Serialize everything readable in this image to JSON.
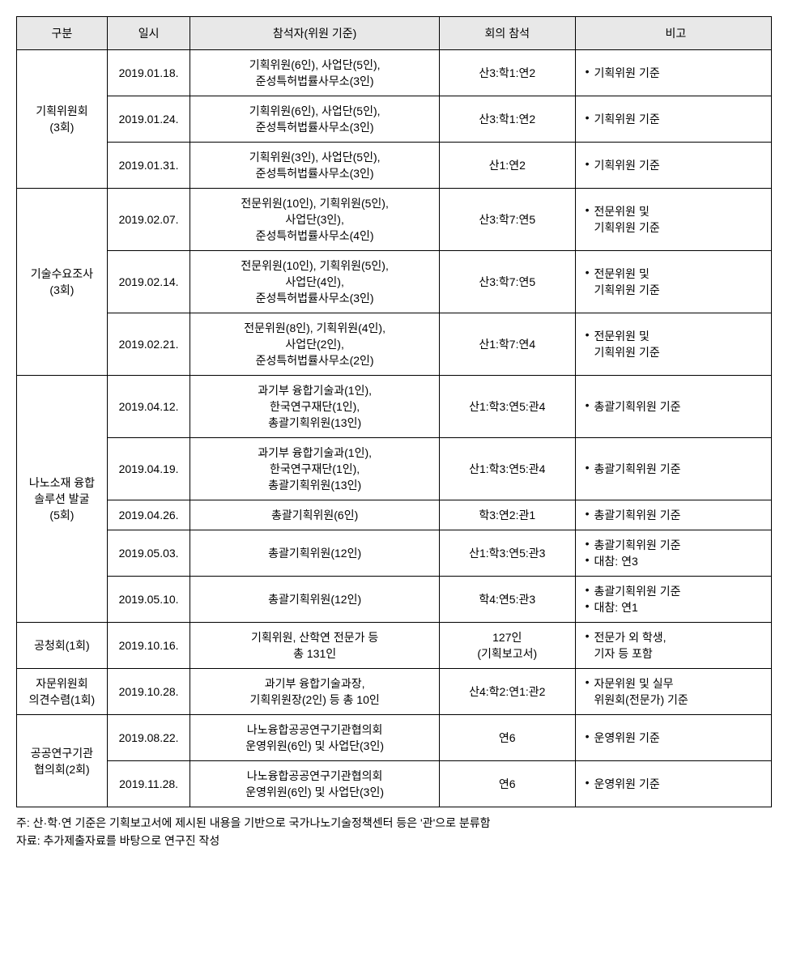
{
  "headers": {
    "category": "구분",
    "date": "일시",
    "attendee": "참석자(위원 기준)",
    "meeting": "회의 참석",
    "note": "비고"
  },
  "groups": [
    {
      "category": "기획위원회\n(3회)",
      "rows": [
        {
          "date": "2019.01.18.",
          "attendee": "기획위원(6인), 사업단(5인),\n준성특허법률사무소(3인)",
          "meeting": "산3:학1:연2",
          "notes": [
            "기획위원 기준"
          ]
        },
        {
          "date": "2019.01.24.",
          "attendee": "기획위원(6인), 사업단(5인),\n준성특허법률사무소(3인)",
          "meeting": "산3:학1:연2",
          "notes": [
            "기획위원 기준"
          ]
        },
        {
          "date": "2019.01.31.",
          "attendee": "기획위원(3인), 사업단(5인),\n준성특허법률사무소(3인)",
          "meeting": "산1:연2",
          "notes": [
            "기획위원 기준"
          ]
        }
      ]
    },
    {
      "category": "기술수요조사\n(3회)",
      "rows": [
        {
          "date": "2019.02.07.",
          "attendee": "전문위원(10인), 기획위원(5인),\n사업단(3인),\n준성특허법률사무소(4인)",
          "meeting": "산3:학7:연5",
          "notes": [
            "전문위원 및\n기획위원 기준"
          ]
        },
        {
          "date": "2019.02.14.",
          "attendee": "전문위원(10인), 기획위원(5인),\n사업단(4인),\n준성특허법률사무소(3인)",
          "meeting": "산3:학7:연5",
          "notes": [
            "전문위원 및\n기획위원 기준"
          ]
        },
        {
          "date": "2019.02.21.",
          "attendee": "전문위원(8인), 기획위원(4인),\n사업단(2인),\n준성특허법률사무소(2인)",
          "meeting": "산1:학7:연4",
          "notes": [
            "전문위원 및\n기획위원 기준"
          ]
        }
      ]
    },
    {
      "category": "나노소재 융합\n솔루션 발굴\n(5회)",
      "rows": [
        {
          "date": "2019.04.12.",
          "attendee": "과기부 융합기술과(1인),\n한국연구재단(1인),\n총괄기획위원(13인)",
          "meeting": "산1:학3:연5:관4",
          "notes": [
            "총괄기획위원 기준"
          ]
        },
        {
          "date": "2019.04.19.",
          "attendee": "과기부 융합기술과(1인),\n한국연구재단(1인),\n총괄기획위원(13인)",
          "meeting": "산1:학3:연5:관4",
          "notes": [
            "총괄기획위원 기준"
          ]
        },
        {
          "date": "2019.04.26.",
          "attendee": "총괄기획위원(6인)",
          "meeting": "학3:연2:관1",
          "notes": [
            "총괄기획위원 기준"
          ]
        },
        {
          "date": "2019.05.03.",
          "attendee": "총괄기획위원(12인)",
          "meeting": "산1:학3:연5:관3",
          "notes": [
            "총괄기획위원 기준",
            "대참: 연3"
          ]
        },
        {
          "date": "2019.05.10.",
          "attendee": "총괄기획위원(12인)",
          "meeting": "학4:연5:관3",
          "notes": [
            "총괄기획위원 기준",
            "대참: 연1"
          ]
        }
      ]
    },
    {
      "category": "공청회(1회)",
      "rows": [
        {
          "date": "2019.10.16.",
          "attendee": "기획위원, 산학연 전문가 등\n총 131인",
          "meeting": "127인\n(기획보고서)",
          "notes": [
            "전문가 외 학생,\n기자 등 포함"
          ]
        }
      ]
    },
    {
      "category": "자문위원회\n의견수렴(1회)",
      "rows": [
        {
          "date": "2019.10.28.",
          "attendee": "과기부 융합기술과장,\n기획위원장(2인) 등 총 10인",
          "meeting": "산4:학2:연1:관2",
          "notes": [
            "자문위원 및 실무\n위원회(전문가) 기준"
          ]
        }
      ]
    },
    {
      "category": "공공연구기관\n협의회(2회)",
      "rows": [
        {
          "date": "2019.08.22.",
          "attendee": "나노융합공공연구기관협의회\n운영위원(6인) 및 사업단(3인)",
          "meeting": "연6",
          "notes": [
            "운영위원 기준"
          ]
        },
        {
          "date": "2019.11.28.",
          "attendee": "나노융합공공연구기관협의회\n운영위원(6인) 및 사업단(3인)",
          "meeting": "연6",
          "notes": [
            "운영위원 기준"
          ]
        }
      ]
    }
  ],
  "footnotes": {
    "note": "주: 산·학·연 기준은 기획보고서에 제시된 내용을 기반으로 국가나노기술정책센터 등은 '관'으로 분류함",
    "source": "자료: 추가제출자료를 바탕으로 연구진 작성"
  }
}
